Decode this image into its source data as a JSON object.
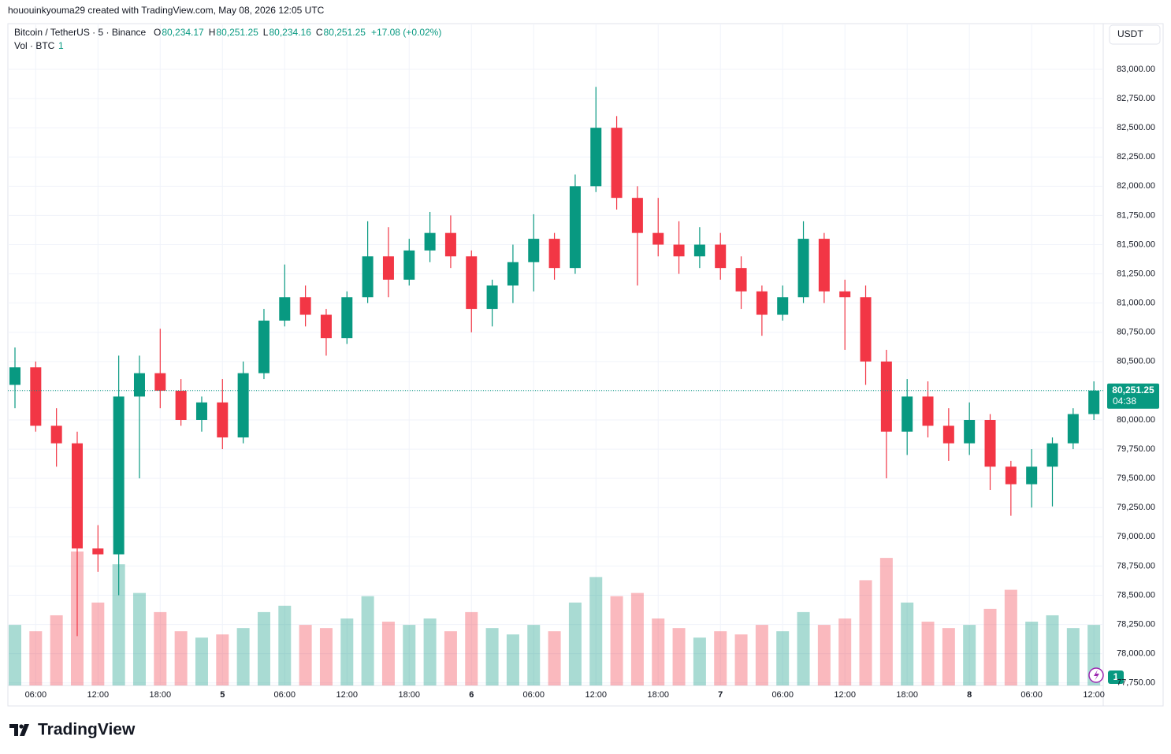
{
  "chart_data": {
    "type": "candlestick",
    "attribution": "hououinkyouma29 created with TradingView.com, May 08, 2026 12:05 UTC",
    "symbol": "Bitcoin / TetherUS · 5 · Binance",
    "ohlc_legend": [
      [
        "O",
        "80,234.17"
      ],
      [
        "H",
        "80,251.25"
      ],
      [
        "L",
        "80,234.16"
      ],
      [
        "C",
        "80,251.25"
      ],
      [
        "",
        "+17.08 (+0.02%)"
      ]
    ],
    "volume_legend": [
      "Vol · BTC",
      "1"
    ],
    "currency": "USDT",
    "price_tag": {
      "value": 80251.25,
      "label": "80,251.25"
    },
    "countdown": "04:38",
    "alerts_badge": "1",
    "brand": "TradingView",
    "up_color": "#089981",
    "down_color": "#f23645",
    "grid": true,
    "ylim": [
      77728,
      83391
    ],
    "yticks": [
      {
        "value": 77750,
        "label": "77,750.00"
      },
      {
        "value": 78000,
        "label": "78,000.00"
      },
      {
        "value": 78250,
        "label": "78,250.00"
      },
      {
        "value": 78500,
        "label": "78,500.00"
      },
      {
        "value": 78750,
        "label": "78,750.00"
      },
      {
        "value": 79000,
        "label": "79,000.00"
      },
      {
        "value": 79250,
        "label": "79,250.00"
      },
      {
        "value": 79500,
        "label": "79,500.00"
      },
      {
        "value": 79750,
        "label": "79,750.00"
      },
      {
        "value": 80000,
        "label": "80,000.00"
      },
      {
        "value": 80250,
        "label": "80,250.00"
      },
      {
        "value": 80500,
        "label": "80,500.00"
      },
      {
        "value": 80750,
        "label": "80,750.00"
      },
      {
        "value": 81000,
        "label": "81,000.00"
      },
      {
        "value": 81250,
        "label": "81,250.00"
      },
      {
        "value": 81500,
        "label": "81,500.00"
      },
      {
        "value": 81750,
        "label": "81,750.00"
      },
      {
        "value": 82000,
        "label": "82,000.00"
      },
      {
        "value": 82250,
        "label": "82,250.00"
      },
      {
        "value": 82500,
        "label": "82,500.00"
      },
      {
        "value": 82750,
        "label": "82,750.00"
      },
      {
        "value": 83000,
        "label": "83,000.00"
      }
    ],
    "categories": [
      null,
      "06:00",
      null,
      null,
      "12:00",
      null,
      null,
      "18:00",
      null,
      null,
      "5",
      null,
      null,
      "06:00",
      null,
      null,
      "12:00",
      null,
      null,
      "18:00",
      null,
      null,
      "6",
      null,
      null,
      "06:00",
      null,
      null,
      "12:00",
      null,
      null,
      "18:00",
      null,
      null,
      "7",
      null,
      null,
      "06:00",
      null,
      null,
      "12:00",
      null,
      null,
      "18:00",
      null,
      null,
      "8",
      null,
      null,
      "06:00",
      null,
      null,
      "12:00"
    ],
    "open": [
      80300,
      80450,
      79950,
      79800,
      78900,
      78850,
      80200,
      80400,
      80250,
      80000,
      80150,
      79850,
      80400,
      80850,
      81050,
      80900,
      80700,
      81050,
      81400,
      81200,
      81450,
      81600,
      81400,
      80950,
      81150,
      81350,
      81550,
      81300,
      82000,
      82500,
      81900,
      81600,
      81500,
      81400,
      81500,
      81300,
      81100,
      80900,
      81050,
      81550,
      81100,
      81050,
      80500,
      79900,
      80200,
      79950,
      79800,
      80000,
      79600,
      79450,
      79600,
      79800,
      80050
    ],
    "high": [
      80620,
      80500,
      80100,
      79900,
      79100,
      80550,
      80550,
      80780,
      80350,
      80200,
      80350,
      80500,
      80950,
      81330,
      81150,
      80950,
      81100,
      81700,
      81650,
      81550,
      81780,
      81750,
      81450,
      81200,
      81500,
      81760,
      81600,
      82100,
      82850,
      82600,
      82000,
      81900,
      81700,
      81650,
      81600,
      81400,
      81150,
      81150,
      81700,
      81600,
      81200,
      81150,
      80600,
      80350,
      80330,
      80100,
      80150,
      80050,
      79650,
      79750,
      79850,
      80100,
      80330
    ],
    "low": [
      80100,
      79900,
      79600,
      78150,
      78700,
      78500,
      79500,
      80100,
      79950,
      79900,
      79750,
      79800,
      80350,
      80800,
      80800,
      80550,
      80650,
      81000,
      81050,
      81150,
      81350,
      81300,
      80750,
      80800,
      81000,
      81100,
      81200,
      81250,
      81950,
      81800,
      81150,
      81400,
      81250,
      81300,
      81200,
      80950,
      80720,
      80850,
      81000,
      81000,
      80600,
      80300,
      79500,
      79700,
      79850,
      79650,
      79700,
      79400,
      79180,
      79250,
      79260,
      79750,
      80000
    ],
    "close": [
      80450,
      79950,
      79800,
      78900,
      78850,
      80200,
      80400,
      80250,
      80000,
      80150,
      79850,
      80400,
      80850,
      81050,
      80900,
      80700,
      81050,
      81400,
      81200,
      81450,
      81600,
      81400,
      80950,
      81150,
      81350,
      81550,
      81300,
      82000,
      82500,
      81900,
      81600,
      81500,
      81400,
      81500,
      81300,
      81100,
      80900,
      81050,
      81550,
      81100,
      81050,
      80500,
      79900,
      80200,
      79950,
      79800,
      80000,
      79600,
      79450,
      79600,
      79800,
      80050,
      80251.25
    ],
    "volume": [
      1900,
      1700,
      2200,
      4200,
      2600,
      3800,
      2900,
      2300,
      1700,
      1500,
      1600,
      1800,
      2300,
      2500,
      1900,
      1800,
      2100,
      2800,
      2000,
      1900,
      2100,
      1700,
      2300,
      1800,
      1600,
      1900,
      1700,
      2600,
      3400,
      2800,
      2900,
      2100,
      1800,
      1500,
      1700,
      1600,
      1900,
      1700,
      2300,
      1900,
      2100,
      3300,
      4000,
      2600,
      2000,
      1800,
      1900,
      2400,
      3000,
      2000,
      2200,
      1800,
      1900
    ]
  }
}
